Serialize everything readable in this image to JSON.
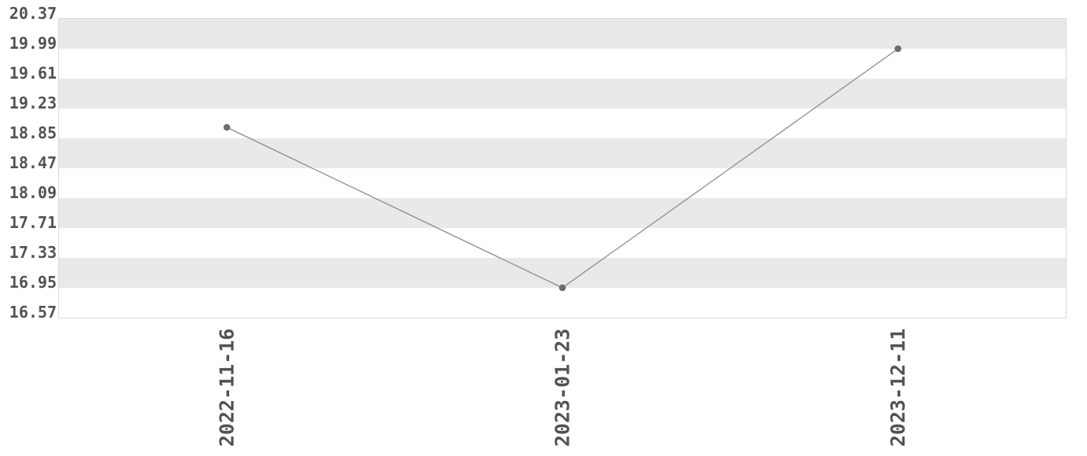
{
  "chart_data": {
    "type": "line",
    "categories": [
      "2022-11-16",
      "2023-01-23",
      "2023-12-11"
    ],
    "values": [
      18.99,
      16.95,
      19.99
    ],
    "title": "",
    "xlabel": "",
    "ylabel": "",
    "ylim": [
      16.57,
      20.37
    ],
    "y_ticks": [
      "20.37",
      "19.99",
      "19.61",
      "19.23",
      "18.85",
      "18.47",
      "18.09",
      "17.71",
      "17.33",
      "16.95",
      "16.57"
    ],
    "y_tick_step": 0.38,
    "grid": "horizontal-alternating-bands",
    "legend_position": "none",
    "colors": {
      "band_fill": "#e9e9e9",
      "band_alt_fill": "#ffffff",
      "plot_border": "#d8d8d8",
      "line": "#8c8c8c",
      "point": "#6d6d6d",
      "tick_text": "#525252",
      "background": "#ffffff"
    }
  }
}
